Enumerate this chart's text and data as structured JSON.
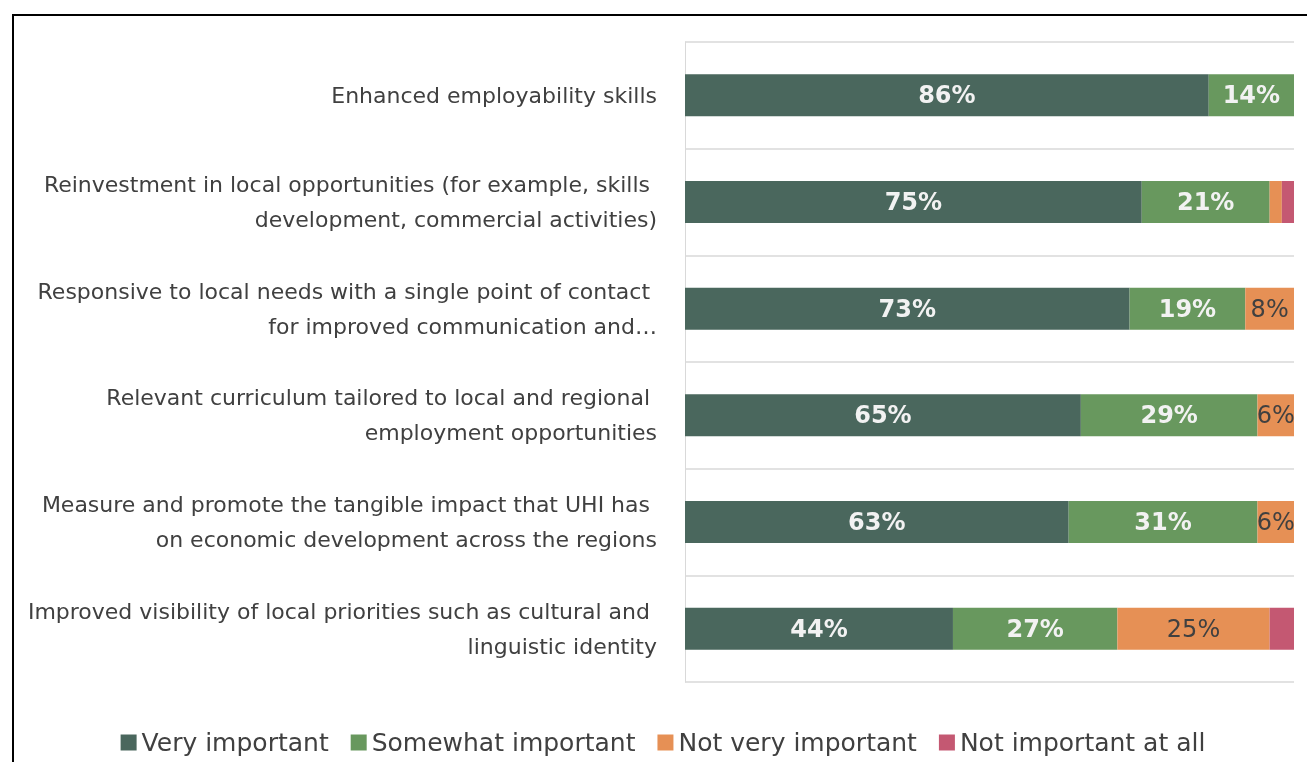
{
  "chart_data": {
    "type": "bar",
    "orientation": "horizontal",
    "stacked": true,
    "categories": [
      "Enhanced employability skills",
      "Reinvestment in local opportunities (for example, skills development, commercial activities)",
      "Responsive to local needs with a single point of contact for improved communication and…",
      "Relevant curriculum tailored to local and regional employment opportunities",
      "Measure and promote the tangible impact that UHI has on economic development across the regions",
      "Improved visibility of local priorities such as cultural and linguistic identity"
    ],
    "series": [
      {
        "name": "Very important",
        "color": "#4a675d",
        "values": [
          86,
          75,
          73,
          65,
          63,
          44
        ],
        "value_labels": [
          "86%",
          "75%",
          "73%",
          "65%",
          "63%",
          "44%"
        ]
      },
      {
        "name": "Somewhat important",
        "color": "#68985e",
        "values": [
          14,
          21,
          19,
          29,
          31,
          27
        ],
        "value_labels": [
          "14%",
          "21%",
          "19%",
          "29%",
          "31%",
          "27%"
        ]
      },
      {
        "name": "Not very important",
        "color": "#e69055",
        "values": [
          0,
          2,
          8,
          6,
          6,
          25
        ],
        "value_labels": [
          null,
          null,
          "8%",
          "6%",
          "6%",
          "25%"
        ]
      },
      {
        "name": "Not important at all",
        "color": "#c45872",
        "values": [
          0,
          2,
          0,
          0,
          0,
          4
        ],
        "value_labels": [
          null,
          null,
          null,
          null,
          null,
          null
        ]
      }
    ],
    "xlim": [
      0,
      100
    ],
    "tick_labels": "y",
    "grid": "y",
    "legend": "bottom"
  }
}
